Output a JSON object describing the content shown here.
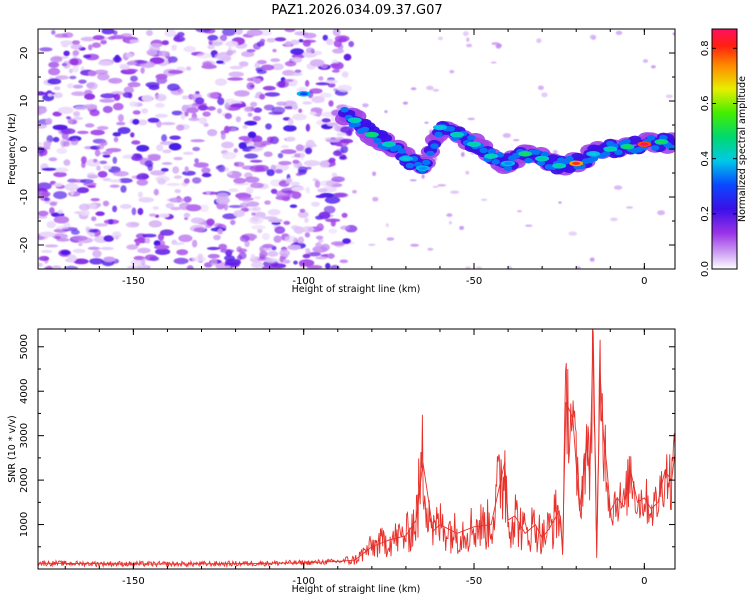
{
  "title": "PAZ1.2026.034.09.37.G07",
  "chart_data": [
    {
      "type": "heatmap",
      "xlabel": "Height of straight line (km)",
      "ylabel": "Frequency (Hz)",
      "xlim": [
        -178,
        9
      ],
      "ylim": [
        -25,
        25
      ],
      "xticks": [
        -150,
        -100,
        -50,
        0
      ],
      "yticks": [
        -20,
        -10,
        0,
        10,
        20
      ],
      "colorbar": {
        "label": "Normalized spectral amplitude",
        "range": [
          0,
          0.87
        ],
        "ticks": [
          0.0,
          0.2,
          0.4,
          0.6,
          0.8
        ]
      },
      "signal_track": [
        {
          "x": -100,
          "y": 11.5,
          "amp": 0.3
        },
        {
          "x": -85,
          "y": 6,
          "amp": 0.45
        },
        {
          "x": -80,
          "y": 3,
          "amp": 0.5
        },
        {
          "x": -75,
          "y": 1,
          "amp": 0.45
        },
        {
          "x": -70,
          "y": -2,
          "amp": 0.4
        },
        {
          "x": -65,
          "y": -4,
          "amp": 0.35
        },
        {
          "x": -60,
          "y": 4.5,
          "amp": 0.4
        },
        {
          "x": -55,
          "y": 3,
          "amp": 0.45
        },
        {
          "x": -50,
          "y": 1,
          "amp": 0.45
        },
        {
          "x": -45,
          "y": -1.5,
          "amp": 0.45
        },
        {
          "x": -40,
          "y": -3,
          "amp": 0.35
        },
        {
          "x": -35,
          "y": -1,
          "amp": 0.5
        },
        {
          "x": -30,
          "y": -2,
          "amp": 0.45
        },
        {
          "x": -25,
          "y": -3.5,
          "amp": 0.45
        },
        {
          "x": -20,
          "y": -3,
          "amp": 0.8
        },
        {
          "x": -15,
          "y": -1,
          "amp": 0.4
        },
        {
          "x": -10,
          "y": 0,
          "amp": 0.45
        },
        {
          "x": -5,
          "y": 0.5,
          "amp": 0.5
        },
        {
          "x": 0,
          "y": 1,
          "amp": 0.87
        },
        {
          "x": 5,
          "y": 1.5,
          "amp": 0.5
        }
      ]
    },
    {
      "type": "line",
      "xlabel": "Height of straight line (km)",
      "ylabel": "SNR (10 * v/v)",
      "xlim": [
        -178,
        9
      ],
      "ylim": [
        0,
        5400
      ],
      "xticks": [
        -150,
        -100,
        -50,
        0
      ],
      "yticks": [
        1000,
        2000,
        3000,
        4000,
        5000
      ],
      "color": "#e8302a",
      "series": [
        {
          "name": "SNR",
          "x": [
            -178,
            -160,
            -140,
            -120,
            -100,
            -90,
            -85,
            -80,
            -75,
            -70,
            -67,
            -65,
            -62,
            -60,
            -55,
            -50,
            -45,
            -41,
            -40,
            -38,
            -35,
            -32,
            -30,
            -28,
            -25,
            -24,
            -23,
            -21,
            -19,
            -17,
            -16,
            -15,
            -14,
            -13,
            -12,
            -11,
            -10,
            -8,
            -6,
            -4,
            -2,
            0,
            2,
            4,
            6,
            8,
            9
          ],
          "y": [
            130,
            120,
            110,
            120,
            140,
            170,
            200,
            500,
            650,
            750,
            1100,
            2400,
            850,
            1000,
            800,
            950,
            1000,
            2400,
            1100,
            1200,
            800,
            1000,
            700,
            900,
            1300,
            500,
            3750,
            3400,
            1300,
            2800,
            2100,
            5350,
            250,
            4400,
            3000,
            2300,
            1300,
            1600,
            1400,
            2200,
            1500,
            1600,
            1350,
            1500,
            2200,
            2000,
            2600
          ]
        }
      ]
    }
  ]
}
